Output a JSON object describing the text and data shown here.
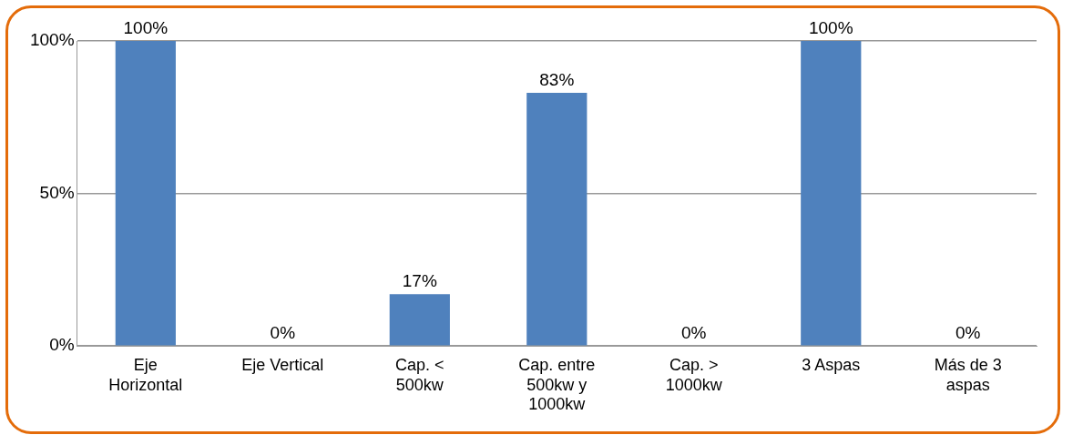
{
  "chart_data": {
    "type": "bar",
    "categories": [
      "Eje\nHorizontal",
      "Eje Vertical",
      "Cap. <\n500kw",
      "Cap. entre\n500kw y\n1000kw",
      "Cap. >\n1000kw",
      "3 Aspas",
      "Más de 3\naspas"
    ],
    "values": [
      100,
      0,
      17,
      83,
      0,
      100,
      0
    ],
    "value_labels": [
      "100%",
      "0%",
      "17%",
      "83%",
      "0%",
      "100%",
      "0%"
    ],
    "color": "#4f81bd",
    "ylim": [
      0,
      100
    ],
    "yticks": [
      {
        "value": 0,
        "label": "0%"
      },
      {
        "value": 50,
        "label": "50%"
      },
      {
        "value": 100,
        "label": "100%"
      }
    ],
    "grid": "y"
  }
}
